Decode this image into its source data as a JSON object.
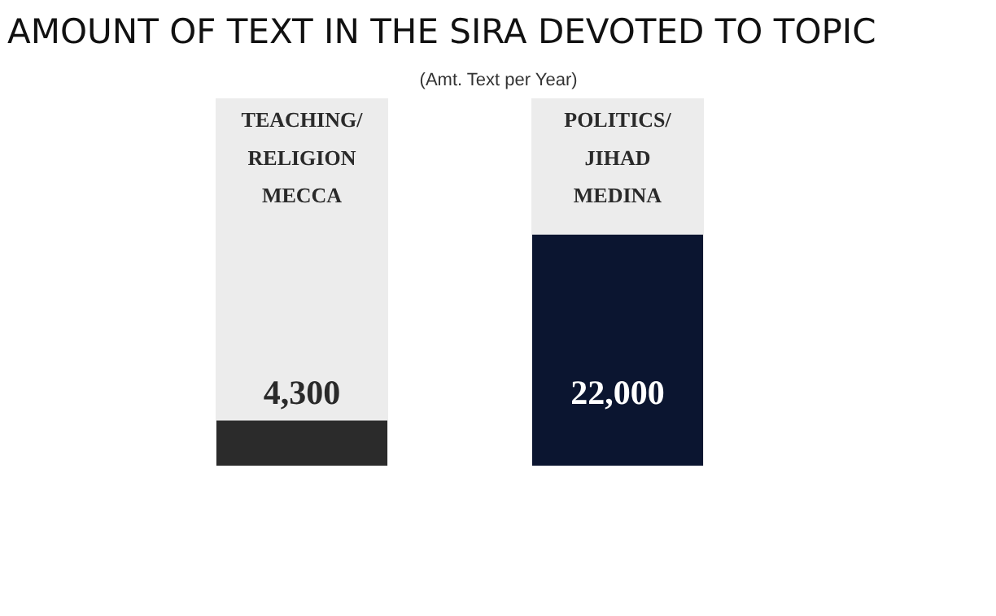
{
  "chart_data": {
    "type": "bar",
    "title": "AMOUNT OF TEXT IN THE SIRA DEVOTED TO TOPIC",
    "subtitle": "(Amt. Text per Year)",
    "categories": [
      "TEACHING/\nRELIGION\nMECCA",
      "POLITICS/\nJIHAD\nMEDINA"
    ],
    "values": [
      4300,
      22000
    ],
    "colors": [
      "#2b2b2b",
      "#0b1530"
    ],
    "value_labels": [
      "4,300",
      "22,000"
    ]
  }
}
